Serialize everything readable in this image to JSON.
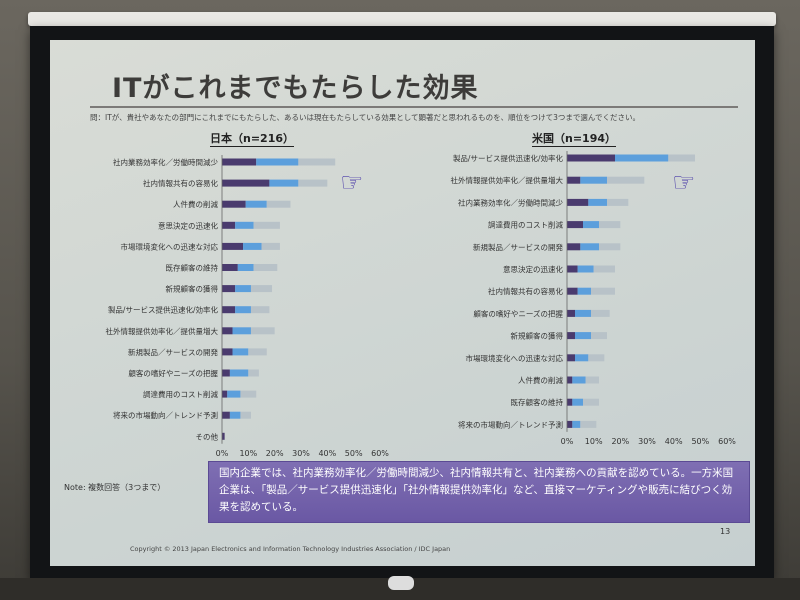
{
  "slide": {
    "title": "ITがこれまでもたらした効果",
    "question": "問：ITが、貴社やあなたの部門にこれまでにもたらした、あるいは現在もたらしている効果として顕著だと思われるものを、順位をつけて3つまで選んでください。",
    "note": "Note: 複数回答（3つまで）",
    "summary": "国内企業では、社内業務効率化／労働時間減少、社内情報共有と、社内業務への貢献を認めている。一方米国企業は、「製品／サービス提供迅速化」「社外情報提供効率化」など、直接マーケティングや販売に結びつく効果を認めている。",
    "page_number": "13",
    "copyright": "Copyright © 2013 Japan Electronics and Information Technology Industries Association / IDC Japan"
  },
  "colors": {
    "first": "#4a3b6e",
    "second": "#5c9fdc",
    "third": "#b8c2c8",
    "hand": "#4a3aa8"
  },
  "icons": [
    "pointing-hand-icon"
  ],
  "chart_data": [
    {
      "type": "bar",
      "orientation": "horizontal",
      "stacked": true,
      "title": "日本（n=216）",
      "categories": [
        "社内業務効率化／労働時間減少",
        "社内情報共有の容易化",
        "人件費の削減",
        "意思決定の迅速化",
        "市場環境変化への迅速な対応",
        "既存顧客の維持",
        "新規顧客の獲得",
        "製品/サービス提供迅速化/効率化",
        "社外情報提供効率化／提供量増大",
        "新規製品／サービスの開発",
        "顧客の嗜好やニーズの把握",
        "調達費用のコスト削減",
        "将来の市場動向／トレンド予測",
        "その他"
      ],
      "series": [
        {
          "values": [
            13,
            18,
            9,
            5,
            8,
            6,
            5,
            5,
            4,
            4,
            3,
            2,
            3,
            1
          ]
        },
        {
          "values": [
            16,
            11,
            8,
            7,
            7,
            6,
            6,
            6,
            7,
            6,
            7,
            5,
            4,
            0
          ]
        },
        {
          "values": [
            14,
            11,
            9,
            10,
            7,
            9,
            8,
            7,
            9,
            7,
            4,
            6,
            4,
            0
          ]
        }
      ],
      "xlim": [
        0,
        60
      ],
      "xticks": [
        "0%",
        "10%",
        "20%",
        "30%",
        "40%",
        "50%",
        "60%"
      ],
      "grid": false,
      "legend": "none"
    },
    {
      "type": "bar",
      "orientation": "horizontal",
      "stacked": true,
      "title": "米国（n=194）",
      "categories": [
        "製品/サービス提供迅速化/効率化",
        "社外情報提供効率化／提供量増大",
        "社内業務効率化／労働時間減少",
        "調達費用のコスト削減",
        "新規製品／サービスの開発",
        "意思決定の迅速化",
        "社内情報共有の容易化",
        "顧客の嗜好やニーズの把握",
        "新規顧客の獲得",
        "市場環境変化への迅速な対応",
        "人件費の削減",
        "既存顧客の維持",
        "将来の市場動向／トレンド予測"
      ],
      "series": [
        {
          "values": [
            18,
            5,
            8,
            6,
            5,
            4,
            4,
            3,
            3,
            3,
            2,
            2,
            2
          ]
        },
        {
          "values": [
            20,
            10,
            7,
            6,
            7,
            6,
            5,
            6,
            6,
            5,
            5,
            4,
            3
          ]
        },
        {
          "values": [
            10,
            14,
            8,
            8,
            8,
            8,
            9,
            7,
            6,
            6,
            5,
            6,
            6
          ]
        }
      ],
      "xlim": [
        0,
        60
      ],
      "xticks": [
        "0%",
        "10%",
        "20%",
        "30%",
        "40%",
        "50%",
        "60%"
      ],
      "grid": false,
      "legend": "none"
    }
  ]
}
